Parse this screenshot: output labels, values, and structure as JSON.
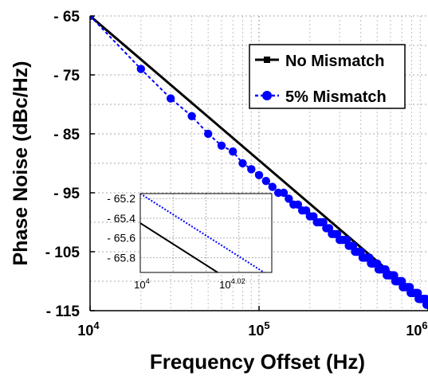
{
  "chart_data": [
    {
      "type": "line",
      "title": "",
      "xlabel": "Frequency Offset (Hz)",
      "ylabel": "Phase Noise (dBc/Hz)",
      "x_scale": "log",
      "xlim": [
        10000,
        1000000
      ],
      "ylim": [
        -115,
        -65
      ],
      "grid": true,
      "legend_position": "top-right",
      "x_ticks": [
        {
          "value": 10000,
          "base": "10",
          "exp": "4"
        },
        {
          "value": 100000,
          "base": "10",
          "exp": "5"
        },
        {
          "value": 1000000,
          "base": "10",
          "exp": "6"
        }
      ],
      "y_ticks": [
        {
          "value": -65,
          "label": "- 65"
        },
        {
          "value": -75,
          "label": "- 75"
        },
        {
          "value": -85,
          "label": "- 85"
        },
        {
          "value": -95,
          "label": "- 95"
        },
        {
          "value": -105,
          "label": "- 105"
        },
        {
          "value": -115,
          "label": "- 115"
        }
      ],
      "series": [
        {
          "name": "No Mismatch",
          "color": "#000000",
          "marker": "square",
          "x": [
            10000,
            1000000
          ],
          "y": [
            -65,
            -114
          ]
        },
        {
          "name": "5% Mismatch",
          "color": "#0000ff",
          "marker": "circle",
          "x": [
            10000,
            20000,
            30000,
            40000,
            50000,
            60000,
            70000,
            80000,
            90000,
            100000,
            110000,
            120000,
            130000,
            140000,
            150000,
            160000,
            170000,
            180000,
            190000,
            200000,
            210000,
            220000,
            230000,
            240000,
            250000,
            260000,
            270000,
            280000,
            290000,
            300000,
            310000,
            320000,
            330000,
            340000,
            350000,
            360000,
            370000,
            380000,
            390000,
            400000,
            410000,
            420000,
            430000,
            440000,
            450000,
            460000,
            470000,
            480000,
            490000,
            500000,
            510000,
            520000,
            530000,
            540000,
            550000,
            560000,
            570000,
            580000,
            590000,
            600000,
            610000,
            620000,
            630000,
            640000,
            650000,
            660000,
            670000,
            680000,
            690000,
            700000,
            710000,
            720000,
            730000,
            740000,
            750000,
            760000,
            770000,
            780000,
            790000,
            800000,
            810000,
            820000,
            830000,
            840000,
            850000,
            860000,
            870000,
            880000,
            890000,
            900000,
            910000,
            920000,
            930000,
            940000,
            950000,
            960000,
            970000,
            980000,
            990000,
            1000000
          ],
          "y": [
            -65,
            -74,
            -79,
            -82,
            -85,
            -87,
            -88,
            -90,
            -91,
            -92,
            -93,
            -94,
            -95,
            -95,
            -96,
            -97,
            -97,
            -98,
            -98,
            -99,
            -99,
            -100,
            -100,
            -100,
            -101,
            -101,
            -102,
            -102,
            -102,
            -103,
            -103,
            -103,
            -103,
            -104,
            -104,
            -104,
            -105,
            -105,
            -105,
            -105,
            -106,
            -106,
            -106,
            -106,
            -106,
            -107,
            -107,
            -107,
            -107,
            -107,
            -108,
            -108,
            -108,
            -108,
            -108,
            -108,
            -109,
            -109,
            -109,
            -109,
            -109,
            -109,
            -109,
            -110,
            -110,
            -110,
            -110,
            -110,
            -110,
            -110,
            -111,
            -111,
            -111,
            -111,
            -111,
            -111,
            -111,
            -111,
            -112,
            -112,
            -112,
            -112,
            -112,
            -112,
            -112,
            -112,
            -112,
            -113,
            -113,
            -113,
            -113,
            -113,
            -113,
            -113,
            -113,
            -113,
            -113,
            -114,
            -114,
            -114
          ]
        }
      ]
    },
    {
      "type": "line",
      "title": "",
      "xlabel": "",
      "ylabel": "",
      "x_scale": "log",
      "xlim": [
        10000,
        10471
      ],
      "ylim": [
        -65.95,
        -65.15
      ],
      "grid": true,
      "x_ticks": [
        {
          "value": 10000,
          "base": "10",
          "exp": "4"
        },
        {
          "value": 10471,
          "base": "10",
          "exp": "4.02"
        }
      ],
      "y_ticks": [
        {
          "value": -65.2,
          "label": "- 65.2"
        },
        {
          "value": -65.4,
          "label": "- 65.4"
        },
        {
          "value": -65.6,
          "label": "- 65.6"
        },
        {
          "value": -65.8,
          "label": "- 65.8"
        }
      ],
      "series": [
        {
          "name": "No Mismatch",
          "color": "#000000",
          "x": [
            10000,
            10471
          ],
          "y": [
            -65.45,
            -66.3
          ]
        },
        {
          "name": "5% Mismatch",
          "color": "#0000ff",
          "x": [
            10000,
            10471
          ],
          "y": [
            -65.15,
            -66.0
          ]
        }
      ]
    }
  ]
}
